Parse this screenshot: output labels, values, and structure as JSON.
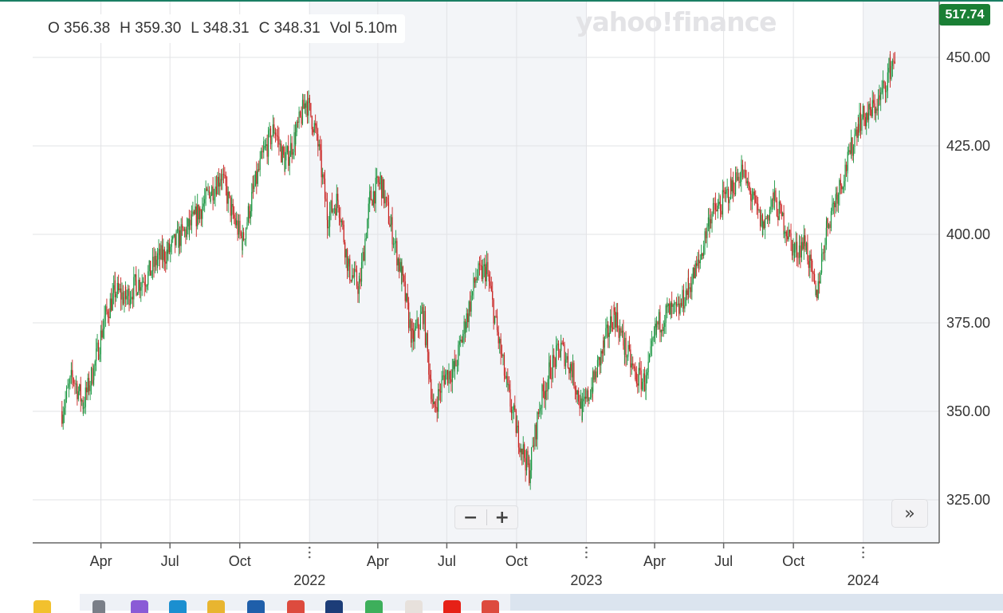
{
  "ohlc": {
    "open": "O 356.38",
    "high": "H 359.30",
    "low": "L 348.31",
    "close": "C 348.31",
    "volume": "Vol 5.10m"
  },
  "logo": "yahoo!finance",
  "price_badge": "517.74",
  "zoom": {
    "minus": "−",
    "plus": "+"
  },
  "forward_label": "»",
  "colors": {
    "up": "#1a9641",
    "down": "#c8201e",
    "grid": "#e2e3e6",
    "shade": "#f3f5f8",
    "accent": "#1a7f35"
  },
  "chart_data": {
    "type": "candlestick",
    "y_ticks": [
      "450.00",
      "425.00",
      "400.00",
      "375.00",
      "350.00",
      "325.00"
    ],
    "x_month_ticks": [
      "Apr",
      "Jul",
      "Oct",
      "Apr",
      "Jul",
      "Oct",
      "Apr",
      "Jul",
      "Oct"
    ],
    "x_year_ticks": [
      "2022",
      "2023",
      "2024"
    ],
    "grid": true,
    "shaded_year": "2022",
    "points": [
      [
        "2021-02-08",
        350
      ],
      [
        "2021-02-22",
        360
      ],
      [
        "2021-03-08",
        352
      ],
      [
        "2021-03-22",
        362
      ],
      [
        "2021-04-05",
        376
      ],
      [
        "2021-04-19",
        384
      ],
      [
        "2021-05-03",
        382
      ],
      [
        "2021-05-17",
        386
      ],
      [
        "2021-05-31",
        388
      ],
      [
        "2021-06-14",
        393
      ],
      [
        "2021-06-28",
        395
      ],
      [
        "2021-07-12",
        399
      ],
      [
        "2021-07-26",
        402
      ],
      [
        "2021-08-09",
        407
      ],
      [
        "2021-08-23",
        412
      ],
      [
        "2021-09-06",
        417
      ],
      [
        "2021-09-20",
        406
      ],
      [
        "2021-10-04",
        398
      ],
      [
        "2021-10-18",
        412
      ],
      [
        "2021-11-01",
        423
      ],
      [
        "2021-11-15",
        430
      ],
      [
        "2021-11-29",
        420
      ],
      [
        "2021-12-13",
        428
      ],
      [
        "2021-12-27",
        438
      ],
      [
        "2022-01-10",
        428
      ],
      [
        "2022-01-24",
        405
      ],
      [
        "2022-02-07",
        410
      ],
      [
        "2022-02-21",
        390
      ],
      [
        "2022-03-07",
        385
      ],
      [
        "2022-03-21",
        410
      ],
      [
        "2022-04-04",
        415
      ],
      [
        "2022-04-18",
        402
      ],
      [
        "2022-05-02",
        388
      ],
      [
        "2022-05-16",
        370
      ],
      [
        "2022-05-30",
        378
      ],
      [
        "2022-06-13",
        350
      ],
      [
        "2022-06-27",
        360
      ],
      [
        "2022-07-11",
        362
      ],
      [
        "2022-07-25",
        375
      ],
      [
        "2022-08-08",
        388
      ],
      [
        "2022-08-22",
        390
      ],
      [
        "2022-09-05",
        372
      ],
      [
        "2022-09-19",
        355
      ],
      [
        "2022-10-03",
        343
      ],
      [
        "2022-10-17",
        333
      ],
      [
        "2022-10-31",
        352
      ],
      [
        "2022-11-14",
        362
      ],
      [
        "2022-11-28",
        368
      ],
      [
        "2022-12-12",
        362
      ],
      [
        "2022-12-26",
        350
      ],
      [
        "2023-01-09",
        358
      ],
      [
        "2023-01-23",
        368
      ],
      [
        "2023-02-06",
        378
      ],
      [
        "2023-02-20",
        368
      ],
      [
        "2023-03-06",
        360
      ],
      [
        "2023-03-20",
        358
      ],
      [
        "2023-04-03",
        374
      ],
      [
        "2023-04-17",
        378
      ],
      [
        "2023-05-01",
        378
      ],
      [
        "2023-05-15",
        385
      ],
      [
        "2023-05-29",
        392
      ],
      [
        "2023-06-12",
        405
      ],
      [
        "2023-06-26",
        408
      ],
      [
        "2023-07-10",
        413
      ],
      [
        "2023-07-24",
        418
      ],
      [
        "2023-08-07",
        410
      ],
      [
        "2023-08-21",
        402
      ],
      [
        "2023-09-04",
        410
      ],
      [
        "2023-09-18",
        403
      ],
      [
        "2023-10-02",
        395
      ],
      [
        "2023-10-16",
        398
      ],
      [
        "2023-10-30",
        382
      ],
      [
        "2023-11-13",
        402
      ],
      [
        "2023-11-27",
        412
      ],
      [
        "2023-12-11",
        420
      ],
      [
        "2023-12-25",
        432
      ],
      [
        "2024-01-08",
        434
      ],
      [
        "2024-01-22",
        438
      ],
      [
        "2024-02-05",
        447
      ],
      [
        "2024-02-12",
        451
      ]
    ]
  }
}
